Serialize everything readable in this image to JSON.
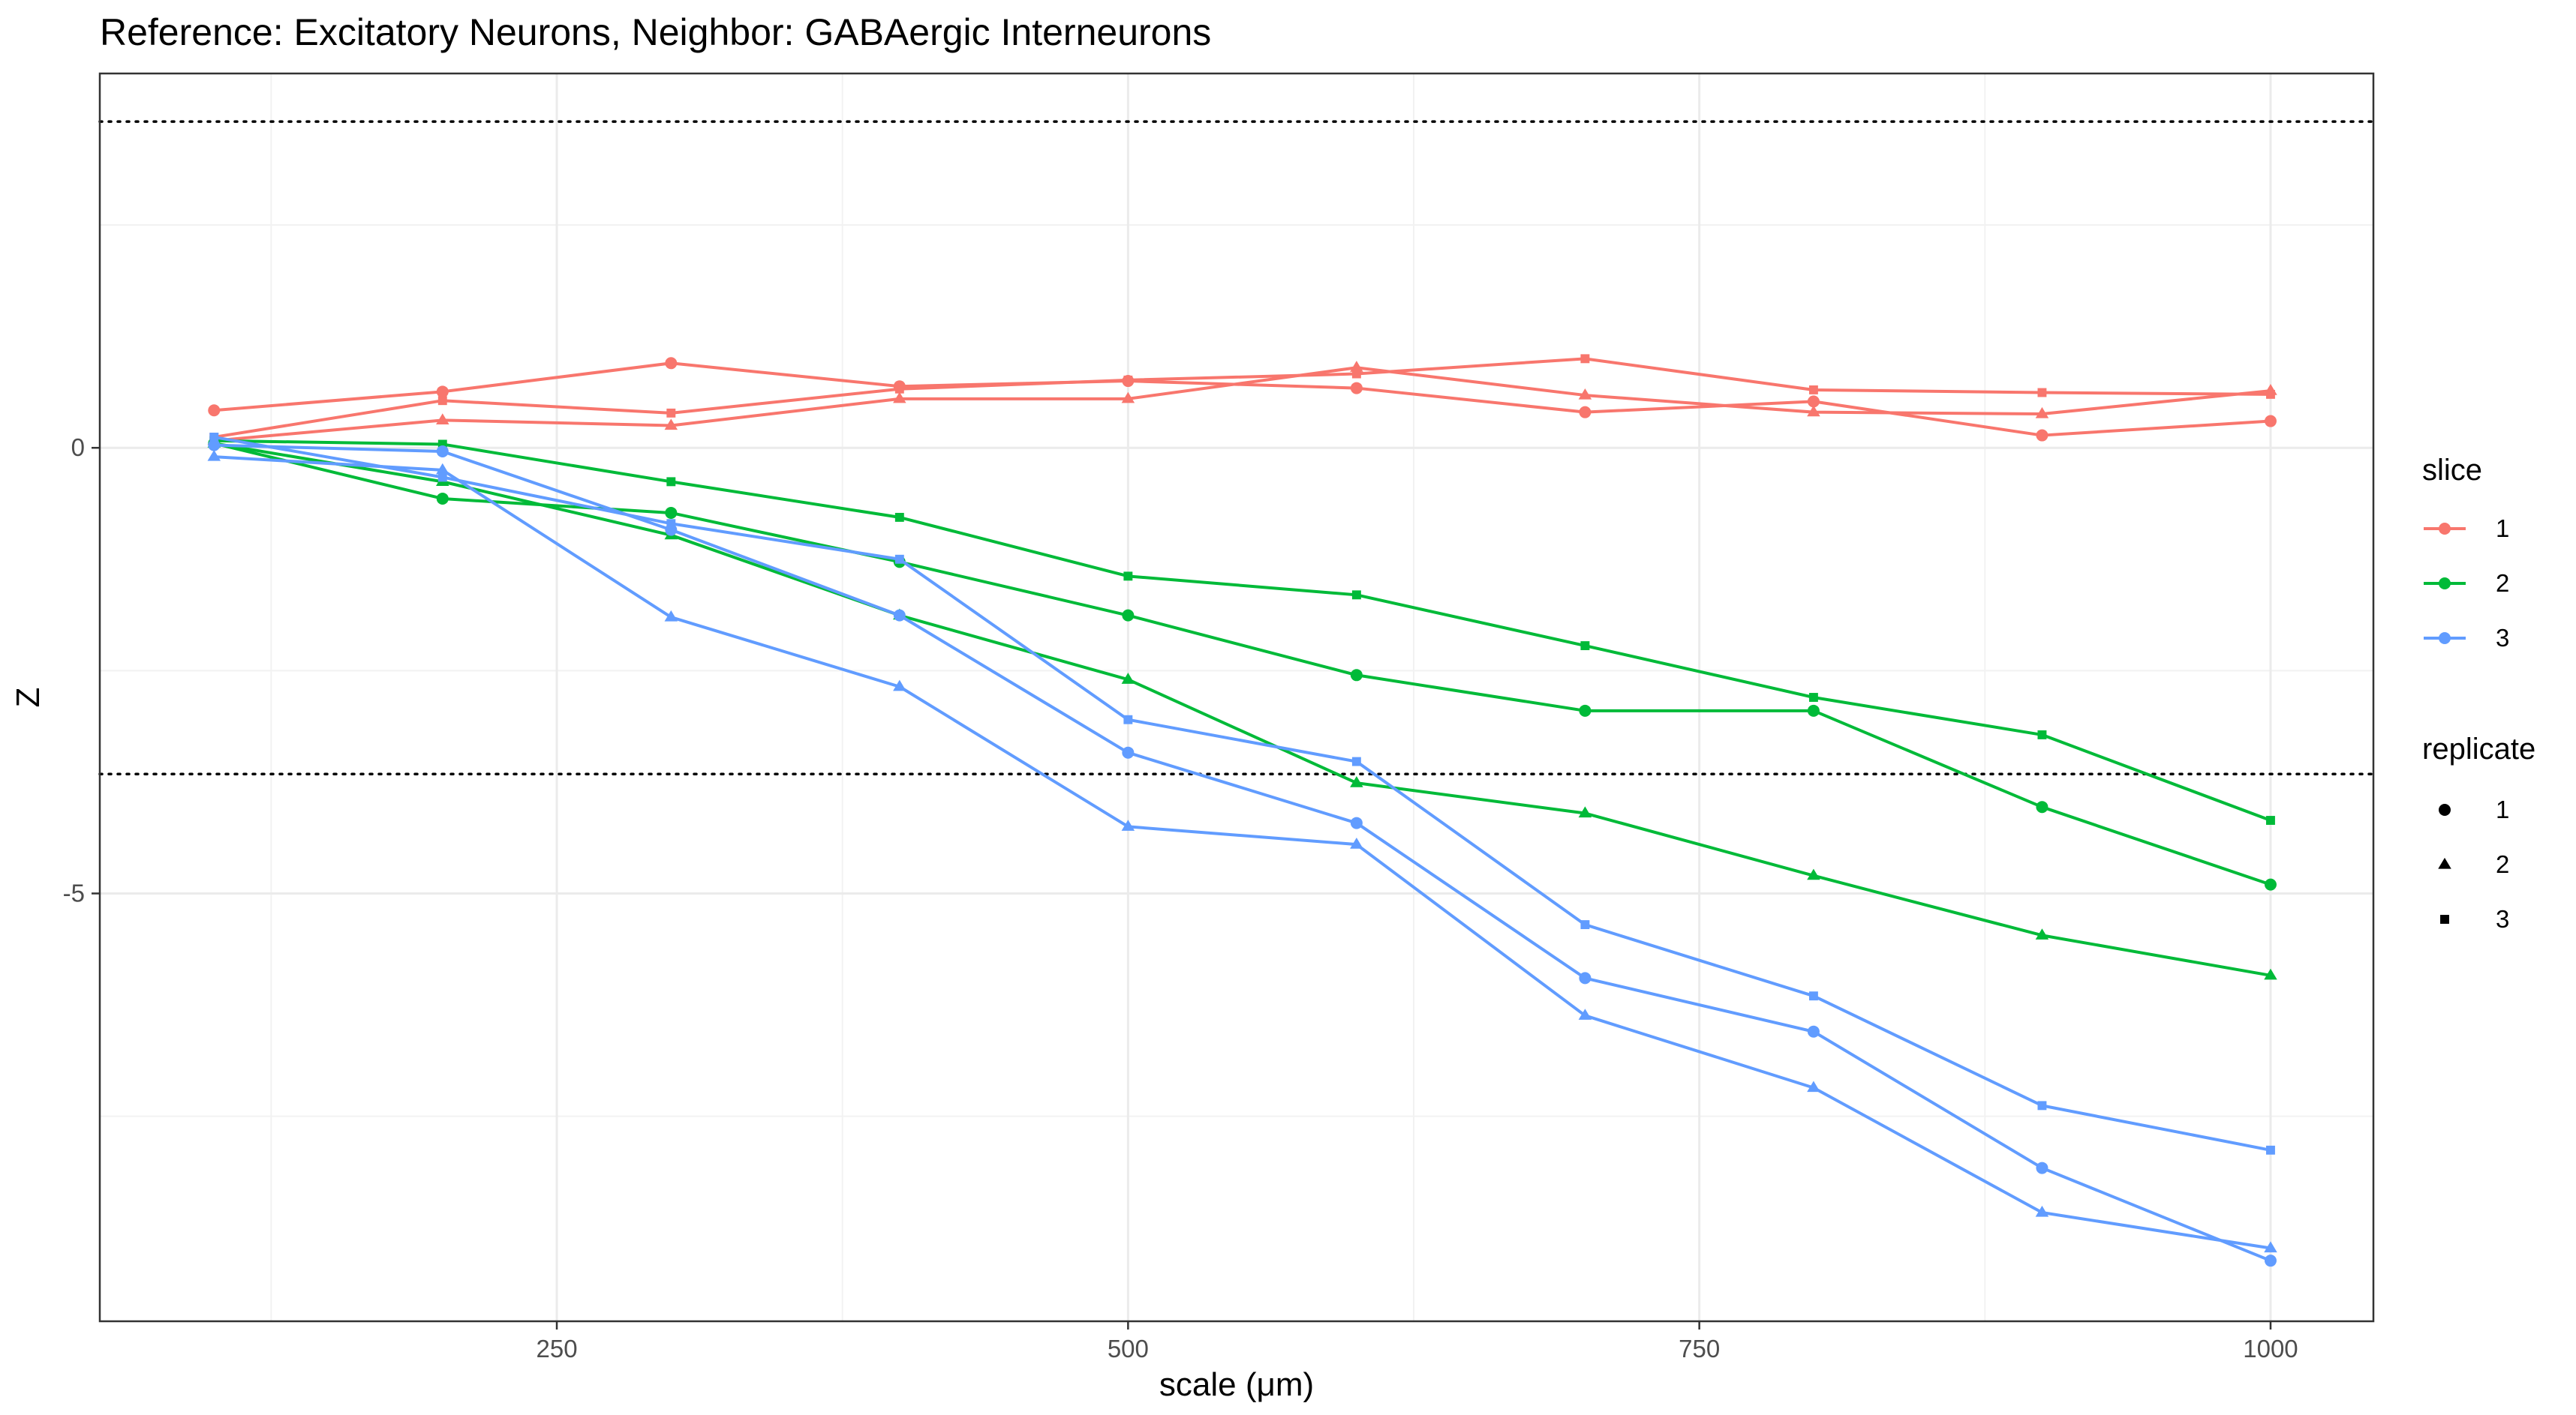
{
  "chart_data": {
    "type": "line",
    "title": "Reference: Excitatory Neurons, Neighbor: GABAergic Interneurons",
    "xlabel": "scale (μm)",
    "ylabel": "Z",
    "xlim": [
      50,
      1045
    ],
    "ylim": [
      -9.8,
      4.2
    ],
    "x_ticks": [
      250,
      500,
      750,
      1000
    ],
    "y_ticks": [
      0,
      -5
    ],
    "reference_lines_y": [
      3.66,
      -3.66
    ],
    "grid": true,
    "x": [
      100,
      200,
      300,
      400,
      500,
      600,
      700,
      800,
      900,
      1000
    ],
    "series": [
      {
        "slice": "1",
        "replicate": "1",
        "color": "#F8766D",
        "values": [
          0.42,
          0.63,
          0.95,
          0.69,
          0.75,
          0.67,
          0.4,
          0.52,
          0.14,
          0.3
        ]
      },
      {
        "slice": "1",
        "replicate": "2",
        "color": "#F8766D",
        "values": [
          0.08,
          0.31,
          0.25,
          0.55,
          0.55,
          0.9,
          0.59,
          0.4,
          0.38,
          0.64
        ]
      },
      {
        "slice": "1",
        "replicate": "3",
        "color": "#F8766D",
        "values": [
          0.12,
          0.53,
          0.39,
          0.66,
          0.76,
          0.83,
          1.0,
          0.65,
          0.62,
          0.6
        ]
      },
      {
        "slice": "2",
        "replicate": "1",
        "color": "#00BA38",
        "values": [
          0.05,
          -0.57,
          -0.73,
          -1.28,
          -1.88,
          -2.55,
          -2.95,
          -2.95,
          -4.03,
          -4.9
        ]
      },
      {
        "slice": "2",
        "replicate": "2",
        "color": "#00BA38",
        "values": [
          0.05,
          -0.38,
          -0.98,
          -1.88,
          -2.6,
          -3.76,
          -4.1,
          -4.8,
          -5.47,
          -5.92
        ]
      },
      {
        "slice": "2",
        "replicate": "3",
        "color": "#00BA38",
        "values": [
          0.08,
          0.04,
          -0.38,
          -0.78,
          -1.44,
          -1.65,
          -2.22,
          -2.8,
          -3.22,
          -4.18
        ]
      },
      {
        "slice": "3",
        "replicate": "1",
        "color": "#619CFF",
        "values": [
          0.03,
          -0.04,
          -0.92,
          -1.88,
          -3.42,
          -4.21,
          -5.95,
          -6.55,
          -8.08,
          -9.12
        ]
      },
      {
        "slice": "3",
        "replicate": "2",
        "color": "#619CFF",
        "values": [
          -0.1,
          -0.25,
          -1.9,
          -2.68,
          -4.25,
          -4.45,
          -6.37,
          -7.18,
          -8.58,
          -8.98
        ]
      },
      {
        "slice": "3",
        "replicate": "3",
        "color": "#619CFF",
        "values": [
          0.12,
          -0.33,
          -0.85,
          -1.25,
          -3.05,
          -3.52,
          -5.35,
          -6.15,
          -7.38,
          -7.88
        ]
      }
    ],
    "legend": {
      "placement": "right",
      "color_title": "slice",
      "color_items": [
        {
          "label": "1",
          "color": "#F8766D"
        },
        {
          "label": "2",
          "color": "#00BA38"
        },
        {
          "label": "3",
          "color": "#619CFF"
        }
      ],
      "shape_title": "replicate",
      "shape_items": [
        {
          "label": "1",
          "shape": "circle"
        },
        {
          "label": "2",
          "shape": "triangle"
        },
        {
          "label": "3",
          "shape": "square"
        }
      ]
    }
  }
}
